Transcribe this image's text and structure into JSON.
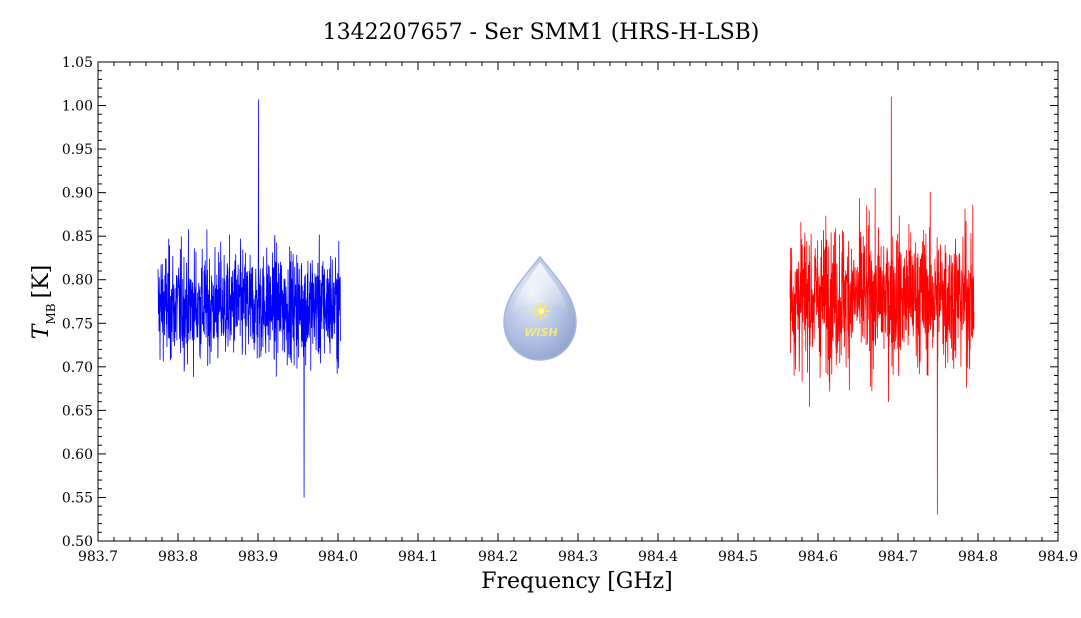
{
  "chart_data": {
    "type": "line",
    "title": "1342207657 - Ser SMM1 (HRS-H-LSB)",
    "xlabel": "Frequency [GHz]",
    "ylabel": "T",
    "ylabel_subscript": "MB",
    "ylabel_unit": "[K]",
    "xlim": [
      983.7,
      984.9
    ],
    "ylim": [
      0.5,
      1.05
    ],
    "x_ticks": [
      "983.7",
      "983.8",
      "983.9",
      "984.0",
      "984.1",
      "984.2",
      "984.3",
      "984.4",
      "984.5",
      "984.6",
      "984.7",
      "984.8",
      "984.9"
    ],
    "y_ticks": [
      "0.50",
      "0.55",
      "0.60",
      "0.65",
      "0.70",
      "0.75",
      "0.80",
      "0.85",
      "0.90",
      "0.95",
      "1.00",
      "1.05"
    ],
    "grid": false,
    "series": [
      {
        "color": "#0000ff",
        "x_range": [
          983.775,
          984.003
        ],
        "mean": 0.77,
        "min": 0.55,
        "max": 1.007,
        "noise_amplitude": 0.06,
        "points": 900
      },
      {
        "color": "#ff0000",
        "x_range": [
          984.565,
          984.795
        ],
        "mean": 0.78,
        "min": 0.53,
        "max": 1.01,
        "noise_amplitude": 0.075,
        "points": 900
      }
    ]
  },
  "logo": {
    "text": "WISH",
    "icon": "water-drop-star-icon",
    "color": "#8fa8d8"
  }
}
